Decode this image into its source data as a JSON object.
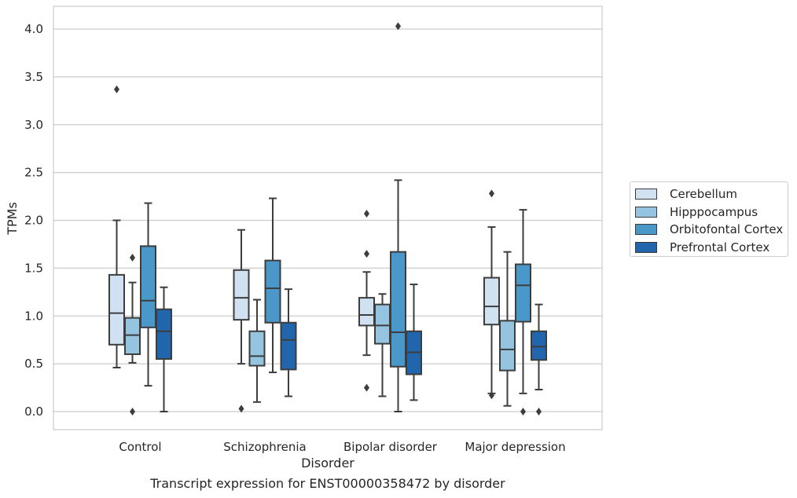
{
  "caption": "Transcript expression for ENST00000358472 by disorder",
  "chart_data": {
    "type": "box",
    "title": "",
    "xlabel": "Disorder",
    "ylabel": "TPMs",
    "ylim": [
      -0.19,
      4.24
    ],
    "yticks": [
      0.0,
      0.5,
      1.0,
      1.5,
      2.0,
      2.5,
      3.0,
      3.5,
      4.0
    ],
    "ytick_labels": [
      "0.0",
      "0.5",
      "1.0",
      "1.5",
      "2.0",
      "2.5",
      "3.0",
      "3.5",
      "4.0"
    ],
    "grid": "horizontal",
    "legend_position": "right",
    "categories": [
      "Control",
      "Schizophrenia",
      "Bipolar disorder",
      "Major depression"
    ],
    "series": [
      {
        "name": "Cerebellum",
        "color": "#d0e1f2",
        "boxes": [
          {
            "whislo": 0.46,
            "q1": 0.7,
            "med": 1.03,
            "q3": 1.43,
            "whishi": 2.0,
            "fliers": [
              3.37
            ]
          },
          {
            "whislo": 0.5,
            "q1": 0.96,
            "med": 1.19,
            "q3": 1.48,
            "whishi": 1.9,
            "fliers": [
              0.03
            ]
          },
          {
            "whislo": 0.59,
            "q1": 0.9,
            "med": 1.01,
            "q3": 1.19,
            "whishi": 1.46,
            "fliers": [
              0.25,
              1.65,
              2.07
            ]
          },
          {
            "whislo": 0.19,
            "q1": 0.91,
            "med": 1.1,
            "q3": 1.4,
            "whishi": 1.93,
            "fliers": [
              0.17,
              2.28
            ]
          }
        ]
      },
      {
        "name": "Hipppocampus",
        "color": "#94c4df",
        "boxes": [
          {
            "whislo": 0.51,
            "q1": 0.6,
            "med": 0.8,
            "q3": 0.98,
            "whishi": 1.35,
            "fliers": [
              0.0,
              1.61
            ]
          },
          {
            "whislo": 0.1,
            "q1": 0.48,
            "med": 0.58,
            "q3": 0.84,
            "whishi": 1.17,
            "fliers": []
          },
          {
            "whislo": 0.16,
            "q1": 0.71,
            "med": 0.9,
            "q3": 1.12,
            "whishi": 1.23,
            "fliers": []
          },
          {
            "whislo": 0.06,
            "q1": 0.43,
            "med": 0.65,
            "q3": 0.95,
            "whishi": 1.67,
            "fliers": []
          }
        ]
      },
      {
        "name": "Orbitofontal Cortex",
        "color": "#4a98c9",
        "boxes": [
          {
            "whislo": 0.27,
            "q1": 0.88,
            "med": 1.16,
            "q3": 1.73,
            "whishi": 2.18,
            "fliers": []
          },
          {
            "whislo": 0.41,
            "q1": 0.93,
            "med": 1.29,
            "q3": 1.58,
            "whishi": 2.23,
            "fliers": []
          },
          {
            "whislo": 0.0,
            "q1": 0.47,
            "med": 0.83,
            "q3": 1.67,
            "whishi": 2.42,
            "fliers": [
              4.03
            ]
          },
          {
            "whislo": 0.19,
            "q1": 0.94,
            "med": 1.32,
            "q3": 1.54,
            "whishi": 2.11,
            "fliers": [
              0.0
            ]
          }
        ]
      },
      {
        "name": "Prefrontal Cortex",
        "color": "#2166ac",
        "boxes": [
          {
            "whislo": 0.0,
            "q1": 0.55,
            "med": 0.84,
            "q3": 1.07,
            "whishi": 1.3,
            "fliers": []
          },
          {
            "whislo": 0.16,
            "q1": 0.44,
            "med": 0.75,
            "q3": 0.93,
            "whishi": 1.28,
            "fliers": []
          },
          {
            "whislo": 0.12,
            "q1": 0.39,
            "med": 0.62,
            "q3": 0.84,
            "whishi": 1.33,
            "fliers": []
          },
          {
            "whislo": 0.23,
            "q1": 0.54,
            "med": 0.68,
            "q3": 0.84,
            "whishi": 1.12,
            "fliers": [
              0.0
            ]
          }
        ]
      }
    ]
  }
}
